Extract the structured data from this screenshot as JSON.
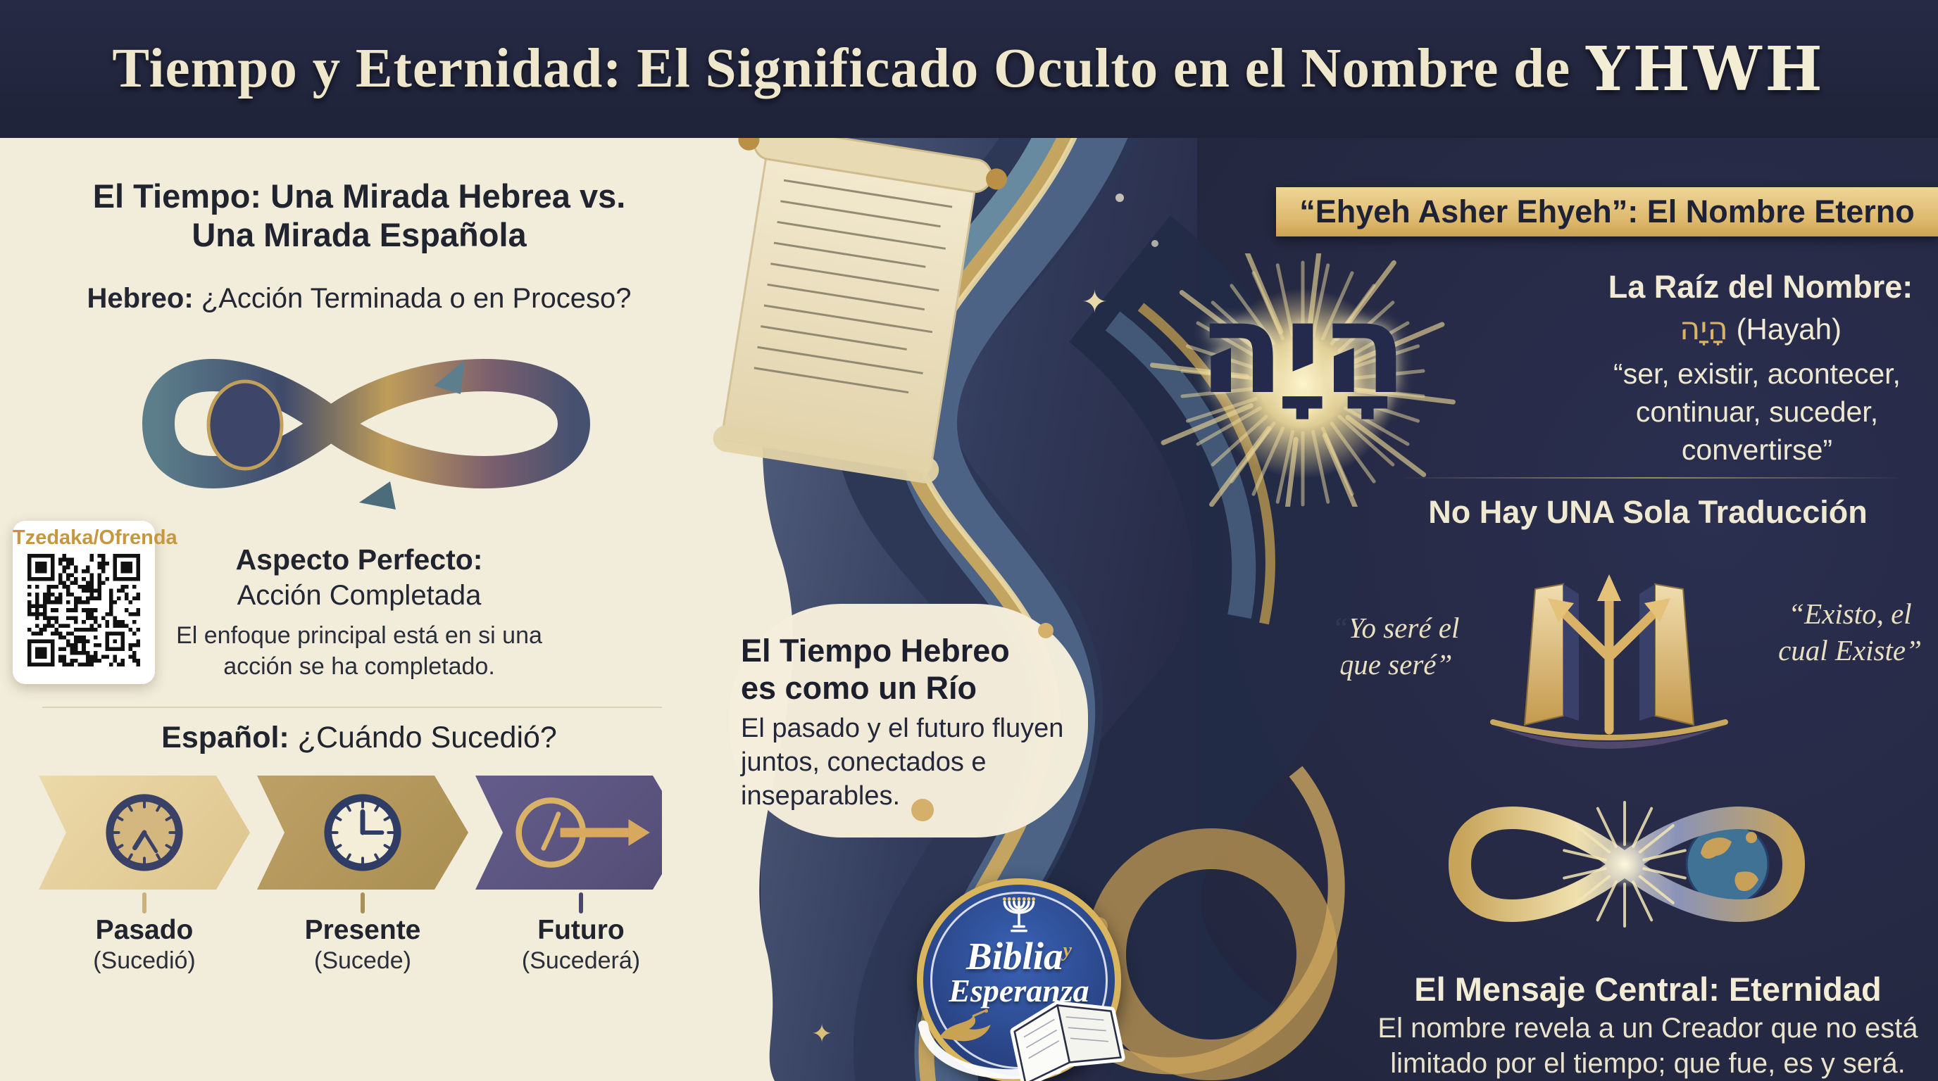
{
  "header": {
    "title_main": "Tiempo y Eternidad: El Significado Oculto en el Nombre de",
    "title_accent": "YHWH"
  },
  "left_panel": {
    "heading_line1": "El Tiempo: Una Mirada Hebrea vs.",
    "heading_line2": "Una Mirada Española",
    "hebrew_label": "Hebreo:",
    "hebrew_question": " ¿Acción Terminada o en Proceso?",
    "aspect_title": "Aspecto Perfecto:",
    "aspect_subtitle": "Acción Completada",
    "aspect_body": "El enfoque principal está en si una acción se ha completado.",
    "qr_label": "Tzedaka/Ofrenda",
    "spanish_label": "Español:",
    "spanish_question": " ¿Cuándo Sucedió?",
    "timeline": [
      {
        "name": "Pasado",
        "sub": "(Sucedió)"
      },
      {
        "name": "Presente",
        "sub": "(Sucede)"
      },
      {
        "name": "Futuro",
        "sub": "(Sucederá)"
      }
    ]
  },
  "center_panel": {
    "river_title_line1": "El Tiempo Hebreo",
    "river_title_line2": "es como un Río",
    "river_body": "El pasado y el futuro fluyen juntos, conectados e inseparables.",
    "logo_line1": "Biblia",
    "logo_amp": "y",
    "logo_line2": "Esperanza"
  },
  "right_panel": {
    "band_title": "“Ehyeh Asher Ehyeh”: El Nombre Eterno",
    "hebrew_big": "הָיָה",
    "root_title": "La Raíz del Nombre:",
    "root_hebrew": "הָיָה",
    "root_translit": " (Hayah)",
    "root_quote": "“ser, existir, acontecer, continuar, suceder, convertirse”",
    "translation_heading": "No Hay UNA Sola Traducción",
    "quote_left": "“Yo seré el que seré”",
    "quote_right": "“Existo, el cual Existe”",
    "message_title": "El Mensaje Central: Eternidad",
    "message_body": "El nombre revela a un Creador que no está limitado por el tiempo; que fue, es y será."
  },
  "icons": {
    "qr": "qr-code",
    "clock_past": "clock-icon",
    "clock_present": "clock-icon",
    "clock_future": "clock-forward-icon",
    "infinity_left": "infinity-ribbon-icon",
    "infinity_globe": "infinity-globe-icon",
    "scroll": "torah-scroll-icon",
    "menorah": "menorah-icon",
    "dove": "dove-icon",
    "book": "open-book-icon",
    "starburst": "starburst-icon",
    "arrows": "branching-arrows-icon"
  },
  "colors": {
    "header_navy": "#20243c",
    "panel_cream": "#f2ecda",
    "panel_navy": "#272b47",
    "band_gold": "#ddb76c",
    "accent_gold": "#d9b267",
    "qr_label_gold": "#c7973f",
    "chevron_past": "#e6d2a0",
    "chevron_present": "#b5995d",
    "chevron_future": "#5c5681",
    "logo_blue": "#2b4a8b"
  }
}
